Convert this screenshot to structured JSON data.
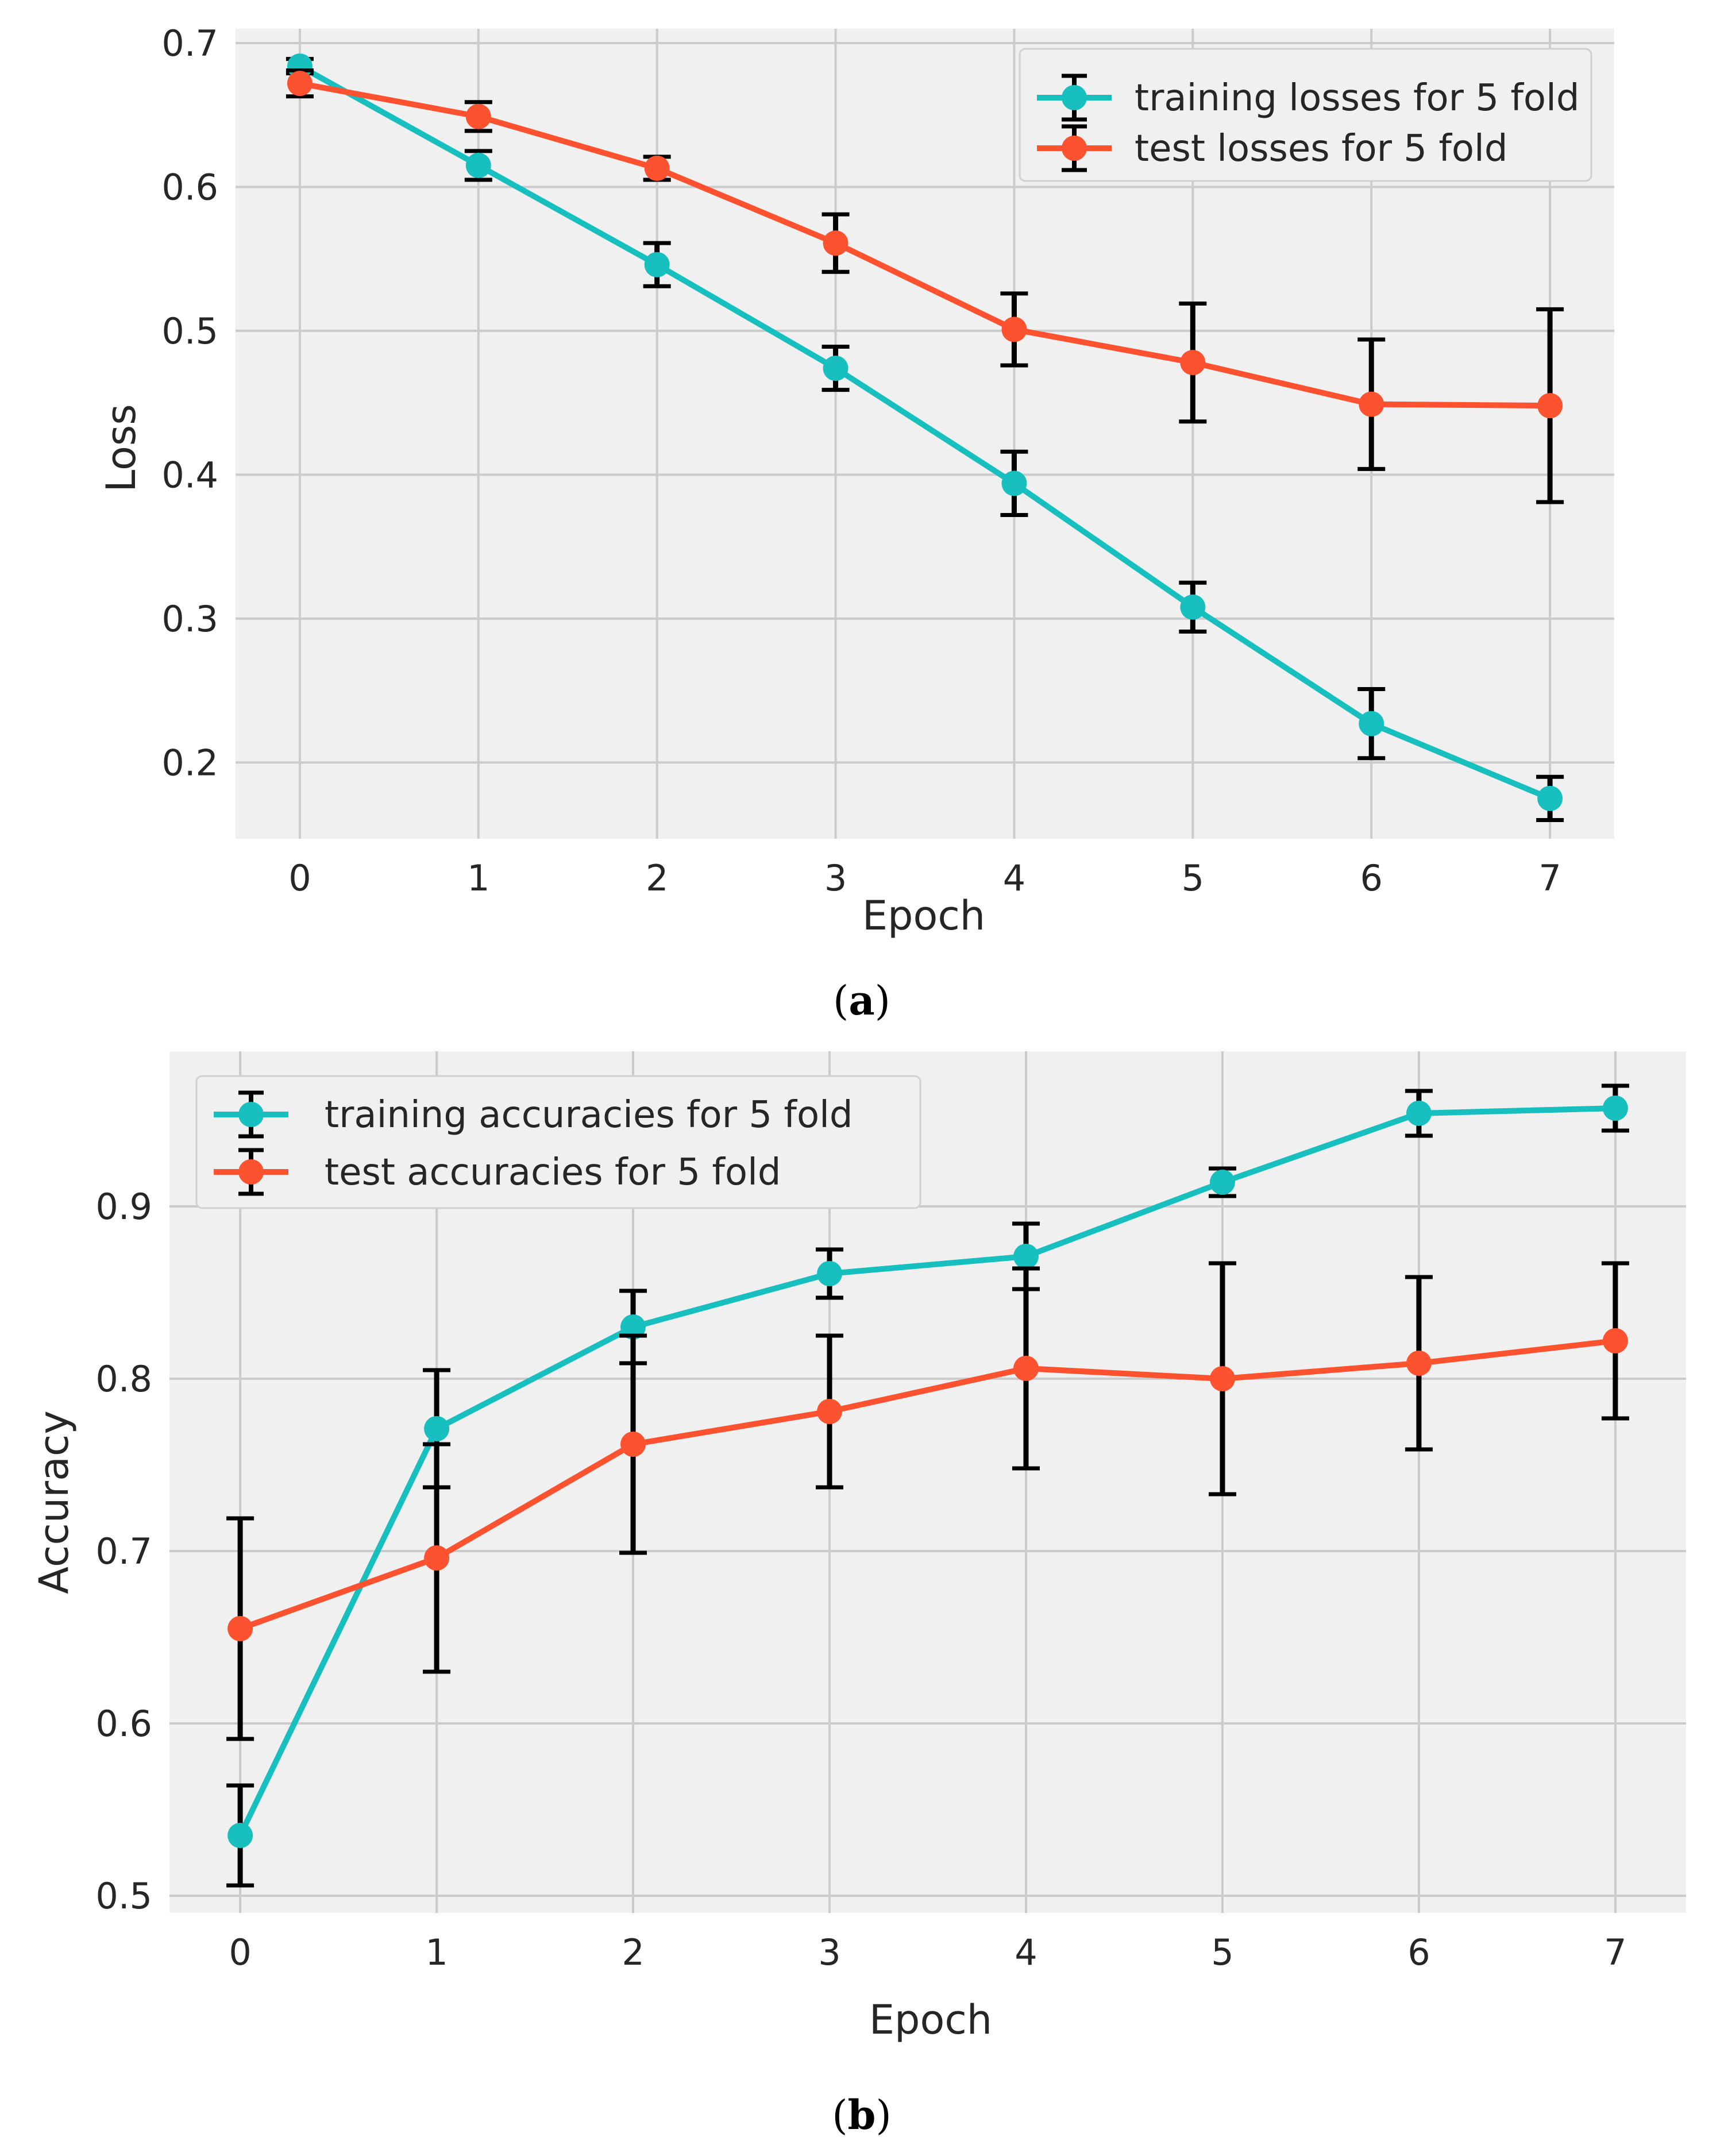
{
  "figure": {
    "captions": [
      {
        "open": "(",
        "letter": "a",
        "close": ")"
      },
      {
        "open": "(",
        "letter": "b",
        "close": ")"
      }
    ]
  },
  "chart_data": [
    {
      "type": "line",
      "title": "",
      "xlabel": "Epoch",
      "ylabel": "Loss",
      "x": [
        0,
        1,
        2,
        3,
        4,
        5,
        6,
        7
      ],
      "xticks": [
        "0",
        "1",
        "2",
        "3",
        "4",
        "5",
        "6",
        "7"
      ],
      "yticks": [
        0.2,
        0.3,
        0.4,
        0.5,
        0.6,
        0.7
      ],
      "ytick_labels": [
        "0.2",
        "0.3",
        "0.4",
        "0.5",
        "0.6",
        "0.7"
      ],
      "xlim": [
        -0.36,
        7.36
      ],
      "ylim": [
        0.147,
        0.71
      ],
      "grid": true,
      "legend_position": "top-right",
      "background": "#f0f0f0",
      "series": [
        {
          "name": "training losses for 5 fold",
          "color": "#17bfbf",
          "values": [
            0.684,
            0.615,
            0.546,
            0.474,
            0.394,
            0.308,
            0.227,
            0.175
          ],
          "errors": [
            0.005,
            0.01,
            0.015,
            0.015,
            0.022,
            0.017,
            0.024,
            0.015
          ]
        },
        {
          "name": "test losses for 5 fold",
          "color": "#fc5230",
          "values": [
            0.672,
            0.649,
            0.613,
            0.561,
            0.501,
            0.478,
            0.449,
            0.448
          ],
          "errors": [
            0.009,
            0.01,
            0.008,
            0.02,
            0.025,
            0.041,
            0.045,
            0.067
          ]
        }
      ]
    },
    {
      "type": "line",
      "title": "",
      "xlabel": "Epoch",
      "ylabel": "Accuracy",
      "x": [
        0,
        1,
        2,
        3,
        4,
        5,
        6,
        7
      ],
      "xticks": [
        "0",
        "1",
        "2",
        "3",
        "4",
        "5",
        "6",
        "7"
      ],
      "yticks": [
        0.5,
        0.6,
        0.7,
        0.8,
        0.9
      ],
      "ytick_labels": [
        "0.5",
        "0.6",
        "0.7",
        "0.8",
        "0.9"
      ],
      "xlim": [
        -0.36,
        7.36
      ],
      "ylim": [
        0.49,
        0.99
      ],
      "grid": true,
      "legend_position": "top-left",
      "background": "#f0f0f0",
      "series": [
        {
          "name": "training accuracies for 5 fold",
          "color": "#17bfbf",
          "values": [
            0.535,
            0.771,
            0.83,
            0.861,
            0.871,
            0.914,
            0.954,
            0.957
          ],
          "errors": [
            0.029,
            0.034,
            0.021,
            0.014,
            0.019,
            0.008,
            0.013,
            0.013
          ]
        },
        {
          "name": "test accuracies for 5 fold",
          "color": "#fc5230",
          "values": [
            0.655,
            0.696,
            0.762,
            0.781,
            0.806,
            0.8,
            0.809,
            0.822
          ],
          "errors": [
            0.064,
            0.066,
            0.063,
            0.044,
            0.058,
            0.067,
            0.05,
            0.045
          ]
        }
      ]
    }
  ]
}
